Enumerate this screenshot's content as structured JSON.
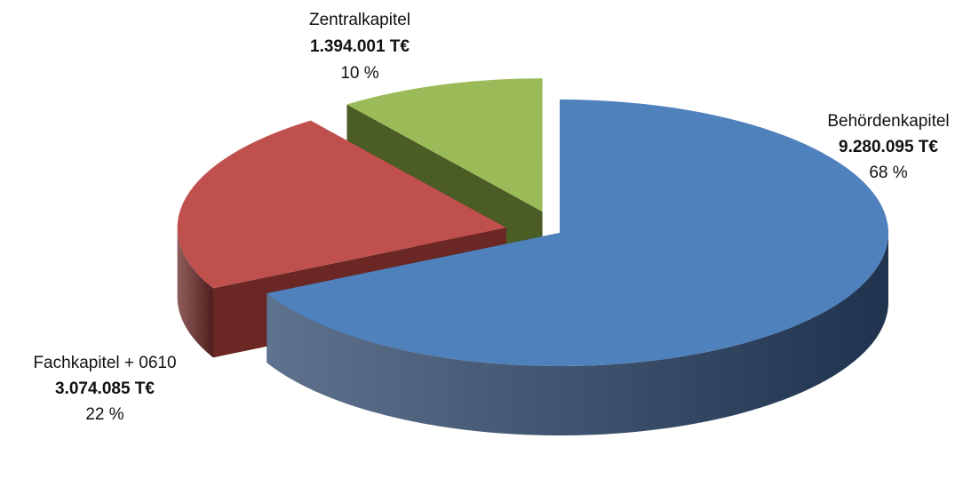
{
  "chart_data": {
    "type": "pie3d",
    "categories": [
      "Behördenkapitel",
      "Fachkapitel + 0610",
      "Zentralkapitel"
    ],
    "values": [
      9280095,
      3074085,
      1394001
    ],
    "value_labels": [
      "9.280.095 T€",
      "3.074.085 T€",
      "1.394.001 T€"
    ],
    "percents": [
      68,
      22,
      10
    ],
    "percent_labels": [
      "68 %",
      "22 %",
      "10 %"
    ],
    "colors": [
      "#4f81bd",
      "#c0504d",
      "#9bbb59"
    ],
    "side_colors": [
      "#2a4468",
      "#6a2724",
      "#4b5c25"
    ]
  }
}
